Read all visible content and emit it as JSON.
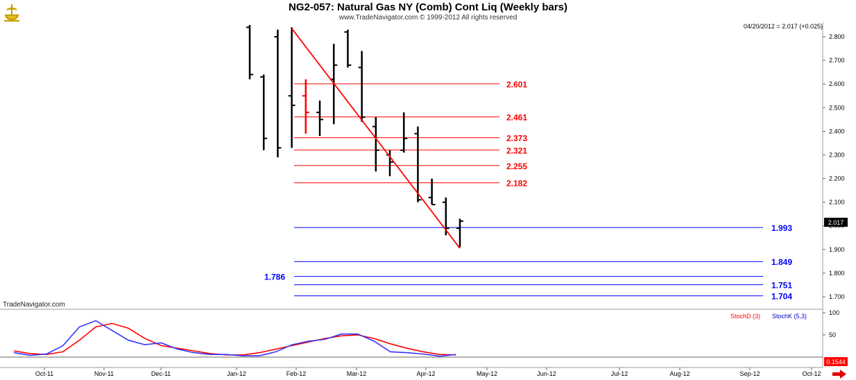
{
  "header": {
    "title": "NG2-057:  Natural Gas NY (Comb) Cont Liq  (Weekly bars)",
    "subtitle": "www.TradeNavigator.com © 1999-2012 All rights reserved",
    "quote": "04/20/2012 = 2.017 (+0.025)",
    "watermark": "TradeNavigator.com",
    "last_price_tag": "2.017"
  },
  "colors": {
    "bars": "#000000",
    "trendline": "#ff0000",
    "resistance": "#ff0000",
    "support": "#0000ff",
    "stochD": "#ff0000",
    "stochK": "#3333ff"
  },
  "chart_data": [
    {
      "type": "ohlc",
      "title": "NG2-057:  Natural Gas NY (Comb) Cont Liq  (Weekly bars)",
      "y_ticks": [
        "2.800",
        "2.700",
        "2.600",
        "2.500",
        "2.400",
        "2.300",
        "2.200",
        "2.100",
        "2.000",
        "1.900",
        "1.800",
        "1.700"
      ],
      "ylim": [
        1.66,
        2.84
      ],
      "x_ticks": [
        "Oct-11",
        "Nov-11",
        "Dec-11",
        "Jan-12",
        "Feb-12",
        "Mar-12",
        "Apr-12",
        "May-12",
        "Jun-12",
        "Jul-12",
        "Aug-12",
        "Sep-12",
        "Oct-12"
      ],
      "bars": [
        {
          "o": 2.84,
          "h": 2.85,
          "l": 2.62,
          "c": 2.64
        },
        {
          "o": 2.63,
          "h": 2.64,
          "l": 2.32,
          "c": 2.37
        },
        {
          "o": 2.8,
          "h": 2.83,
          "l": 2.29,
          "c": 2.33
        },
        {
          "o": 2.55,
          "h": 2.84,
          "l": 2.33,
          "c": 2.51
        },
        {
          "o": 2.55,
          "h": 2.62,
          "l": 2.39,
          "c": 2.48,
          "color": "#ff0000"
        },
        {
          "o": 2.48,
          "h": 2.53,
          "l": 2.38,
          "c": 2.45
        },
        {
          "o": 2.62,
          "h": 2.77,
          "l": 2.43,
          "c": 2.68
        },
        {
          "o": 2.82,
          "h": 2.83,
          "l": 2.67,
          "c": 2.68
        },
        {
          "o": 2.67,
          "h": 2.74,
          "l": 2.44,
          "c": 2.46
        },
        {
          "o": 2.42,
          "h": 2.46,
          "l": 2.23,
          "c": 2.32
        },
        {
          "o": 2.3,
          "h": 2.32,
          "l": 2.21,
          "c": 2.27
        },
        {
          "o": 2.32,
          "h": 2.48,
          "l": 2.31,
          "c": 2.37
        },
        {
          "o": 2.39,
          "h": 2.42,
          "l": 2.1,
          "c": 2.11
        },
        {
          "o": 2.12,
          "h": 2.2,
          "l": 2.09,
          "c": 2.09
        },
        {
          "o": 2.1,
          "h": 2.12,
          "l": 1.96,
          "c": 1.99
        },
        {
          "o": 1.99,
          "h": 2.03,
          "l": 1.91,
          "c": 2.02
        }
      ],
      "trendline": {
        "from": 2.835,
        "to": 1.905
      },
      "resistance_levels": [
        "2.601",
        "2.461",
        "2.373",
        "2.321",
        "2.255",
        "2.182"
      ],
      "support_levels": [
        "1.993",
        "1.849",
        "1.786",
        "1.751",
        "1.704"
      ]
    },
    {
      "type": "line",
      "legend": [
        "StochD (3)",
        "StochK (5,3)"
      ],
      "y_ticks": [
        "100",
        "50"
      ],
      "last_value": "0.1544",
      "series": [
        {
          "name": "StochD (3)",
          "values": [
            14,
            8,
            6,
            12,
            38,
            68,
            76,
            65,
            42,
            26,
            20,
            14,
            8,
            5,
            5,
            10,
            18,
            26,
            34,
            42,
            48,
            50,
            42,
            30,
            20,
            12,
            6,
            5
          ]
        },
        {
          "name": "StochK (5,3)",
          "values": [
            10,
            4,
            7,
            26,
            68,
            82,
            60,
            38,
            28,
            32,
            18,
            10,
            6,
            6,
            3,
            3,
            12,
            28,
            36,
            40,
            52,
            52,
            36,
            12,
            10,
            7,
            2,
            6
          ]
        }
      ]
    }
  ]
}
